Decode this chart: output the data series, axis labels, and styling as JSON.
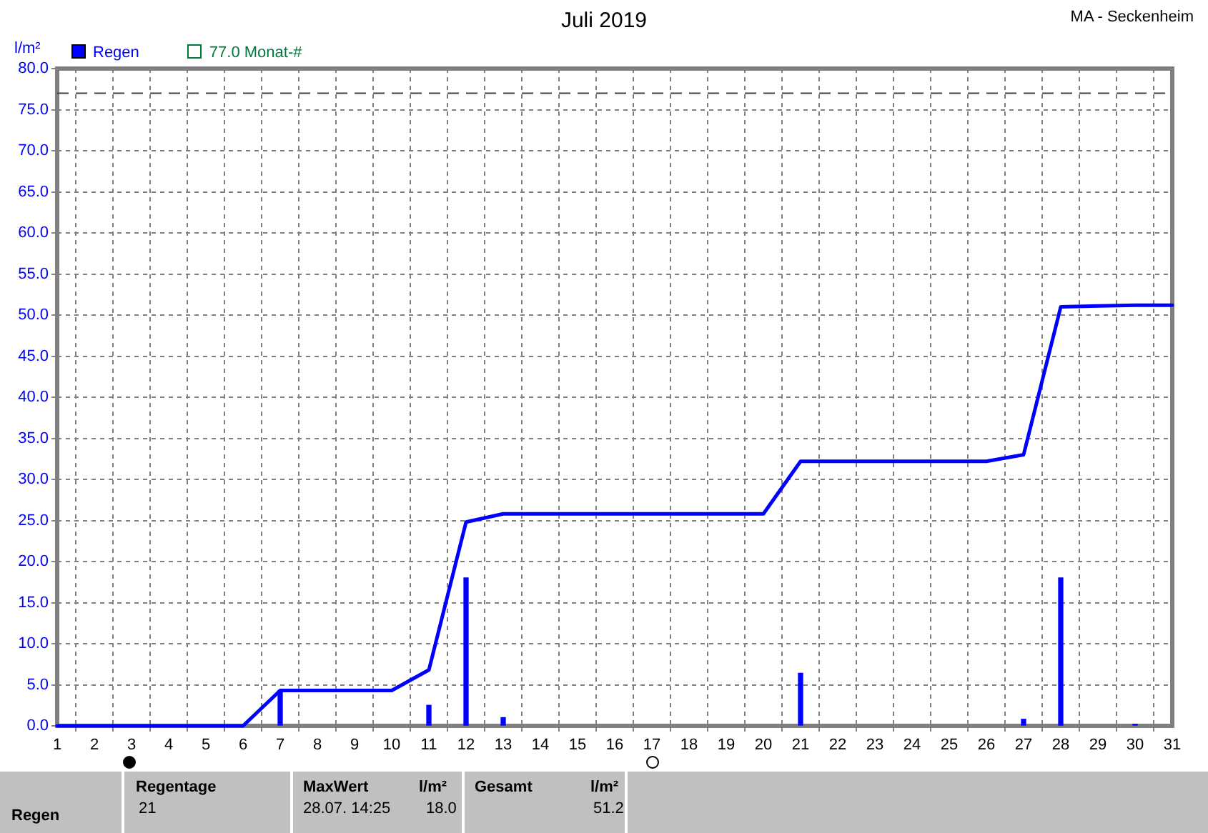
{
  "chart_data": {
    "type": "line",
    "title": "Juli 2019",
    "ylabel": "l/m²",
    "xlim": [
      1,
      31
    ],
    "xticks": [
      1,
      2,
      3,
      4,
      5,
      6,
      7,
      8,
      9,
      10,
      11,
      12,
      13,
      14,
      15,
      16,
      17,
      18,
      19,
      20,
      21,
      22,
      23,
      24,
      25,
      26,
      27,
      28,
      29,
      30,
      31
    ],
    "ylim": [
      0,
      80
    ],
    "yticks": [
      {
        "value": 0,
        "label": "0.0"
      },
      {
        "value": 5,
        "label": "5.0"
      },
      {
        "value": 10,
        "label": "10.0"
      },
      {
        "value": 15,
        "label": "15.0"
      },
      {
        "value": 20,
        "label": "20.0"
      },
      {
        "value": 25,
        "label": "25.0"
      },
      {
        "value": 30,
        "label": "30.0"
      },
      {
        "value": 35,
        "label": "35.0"
      },
      {
        "value": 40,
        "label": "40.0"
      },
      {
        "value": 45,
        "label": "45.0"
      },
      {
        "value": 50,
        "label": "50.0"
      },
      {
        "value": 55,
        "label": "55.0"
      },
      {
        "value": 60,
        "label": "60.0"
      },
      {
        "value": 65,
        "label": "65.0"
      },
      {
        "value": 70,
        "label": "70.0"
      },
      {
        "value": 75,
        "label": "75.0"
      },
      {
        "value": 80,
        "label": "80.0"
      }
    ],
    "series": [
      {
        "type": "bar",
        "name": "Regen",
        "color": "#0000ff",
        "x": [
          7,
          11,
          12,
          13,
          21,
          27,
          28,
          30
        ],
        "values": [
          4.3,
          2.5,
          18.0,
          1.0,
          6.4,
          0.8,
          18.0,
          0.2
        ]
      },
      {
        "color": "#0000ff",
        "x": [
          1,
          6,
          7,
          10,
          11,
          12,
          13,
          20,
          21,
          26,
          27,
          28,
          30,
          31
        ],
        "values": [
          0,
          0,
          4.3,
          4.3,
          6.8,
          24.8,
          25.8,
          25.8,
          32.2,
          32.2,
          33.0,
          51.0,
          51.2,
          51.2
        ]
      }
    ],
    "ref_lines": [
      {
        "axis": "y",
        "value": 77.0,
        "label": "77.0 Monat-#",
        "color": "#404040",
        "line_style": "dashed"
      }
    ],
    "grid": true,
    "legend": "top left",
    "marker": "none",
    "line_style": "solid",
    "annotations": [
      "MA - Seckenheim",
      "Regen",
      "Regentage",
      "21",
      "MaxWert",
      "28.07.  14:25",
      "l/m²",
      "18.0",
      "Gesamt",
      "l/m²",
      "51.2"
    ]
  }
}
